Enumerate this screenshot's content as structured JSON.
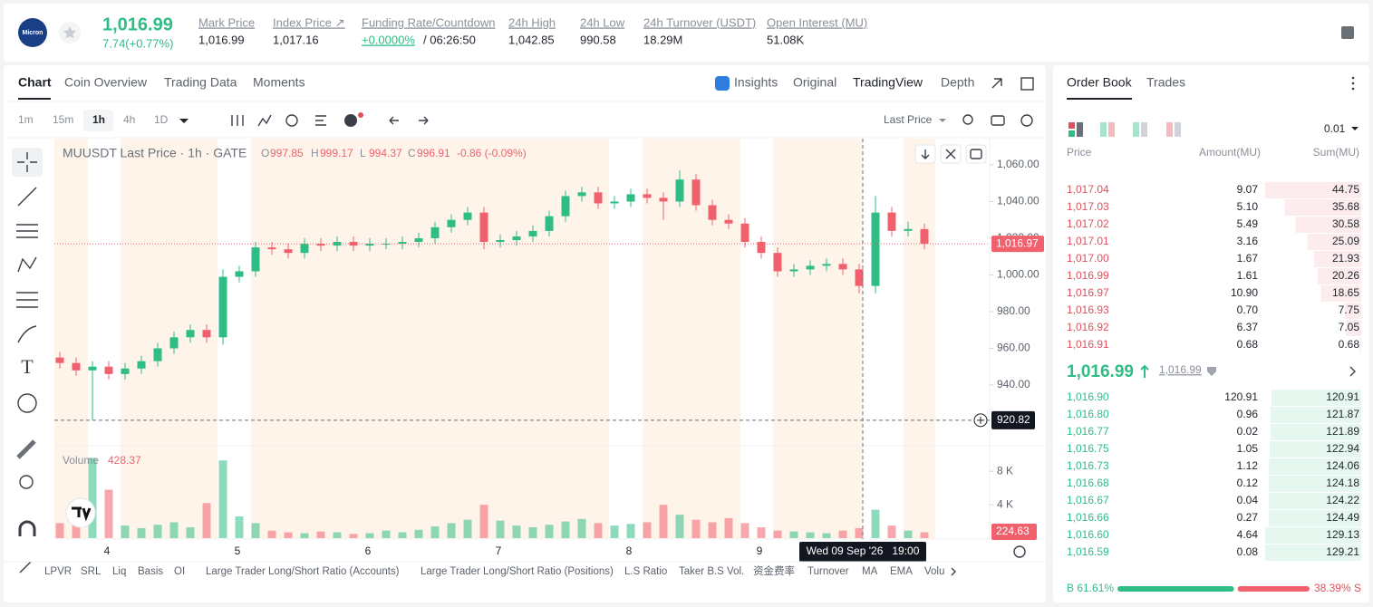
{
  "header": {
    "icon_text": "Micron",
    "last_price": "1,016.99",
    "change": "7.74(+0.77%)",
    "stats": [
      {
        "label": "Mark Price",
        "value": "1,016.99"
      },
      {
        "label": "Index Price ↗",
        "value": "1,017.16"
      },
      {
        "label": "Funding Rate/Countdown",
        "value": "+0.0000%",
        "countdown": "/ 06:26:50"
      },
      {
        "label": "24h High",
        "value": "1,042.85"
      },
      {
        "label": "24h Low",
        "value": "990.58"
      },
      {
        "label": "24h Turnover (USDT)",
        "value": "18.29M"
      },
      {
        "label": "Open Interest (MU)",
        "value": "51.08K"
      }
    ]
  },
  "tabs": [
    "Chart",
    "Coin Overview",
    "Trading Data",
    "Moments"
  ],
  "view_tabs": [
    "Insights",
    "Original",
    "TradingView",
    "Depth"
  ],
  "intervals": [
    "1m",
    "15m",
    "1h",
    "4h",
    "1D"
  ],
  "price_type": "Last Price",
  "chart_data": {
    "type": "candlestick",
    "title": "MUUSDT Last Price · 1h · GATE",
    "legend": [
      {
        "key": "O",
        "value": "997.85"
      },
      {
        "key": "H",
        "value": "999.17"
      },
      {
        "key": "L",
        "value": "994.37"
      },
      {
        "key": "C",
        "value": "996.91"
      }
    ],
    "legend_change": "-0.86 (-0.09%)",
    "x_labels": [
      "4",
      "5",
      "6",
      "7",
      "8",
      "9"
    ],
    "open": [
      955,
      952,
      948,
      950,
      946,
      949,
      953,
      960,
      966,
      970,
      966,
      999,
      1002,
      1015,
      1014,
      1012,
      1017,
      1016,
      1018,
      1016,
      1017,
      1017,
      1018,
      1020,
      1026,
      1030,
      1034,
      1018,
      1019,
      1021,
      1024,
      1032,
      1043,
      1045,
      1039,
      1040,
      1044,
      1042,
      1040,
      1052,
      1038,
      1030,
      1028,
      1018,
      1012,
      1002,
      1003,
      1005,
      1006,
      1003,
      994,
      1034,
      1024,
      1025
    ],
    "high": [
      958,
      955,
      953,
      953,
      952,
      956,
      963,
      969,
      973,
      973,
      1003,
      1005,
      1018,
      1018,
      1017,
      1020,
      1020,
      1021,
      1021,
      1020,
      1020,
      1021,
      1023,
      1029,
      1033,
      1037,
      1037,
      1022,
      1024,
      1027,
      1035,
      1046,
      1048,
      1048,
      1043,
      1047,
      1047,
      1045,
      1057,
      1055,
      1041,
      1033,
      1031,
      1021,
      1015,
      1006,
      1008,
      1009,
      1009,
      1006,
      1043,
      1037,
      1029,
      1028
    ],
    "low": [
      949,
      945,
      921,
      943,
      943,
      946,
      950,
      957,
      963,
      963,
      962,
      996,
      999,
      1011,
      1009,
      1009,
      1013,
      1013,
      1013,
      1013,
      1014,
      1014,
      1015,
      1017,
      1023,
      1027,
      1014,
      1015,
      1016,
      1018,
      1021,
      1029,
      1040,
      1036,
      1036,
      1037,
      1039,
      1030,
      1037,
      1035,
      1027,
      1025,
      1015,
      1009,
      999,
      999,
      1000,
      1002,
      1000,
      990,
      990,
      1021,
      1021,
      1014
    ],
    "close": [
      952,
      948,
      950,
      946,
      949,
      953,
      960,
      966,
      970,
      966,
      999,
      1002,
      1015,
      1014,
      1012,
      1017,
      1016,
      1018,
      1016,
      1017,
      1017,
      1018,
      1020,
      1026,
      1030,
      1034,
      1018,
      1019,
      1021,
      1024,
      1032,
      1043,
      1045,
      1039,
      1040,
      1044,
      1042,
      1040,
      1052,
      1038,
      1030,
      1028,
      1018,
      1012,
      1002,
      1003,
      1005,
      1006,
      1003,
      994,
      1034,
      1024,
      1025,
      1017
    ],
    "volume": [
      1800,
      2400,
      9600,
      5800,
      1500,
      1200,
      1600,
      1900,
      1300,
      4200,
      9300,
      2600,
      1800,
      900,
      700,
      600,
      800,
      700,
      500,
      600,
      900,
      700,
      1000,
      1400,
      1800,
      2200,
      4000,
      2100,
      1500,
      1300,
      1600,
      2000,
      2300,
      1800,
      1500,
      1700,
      1900,
      4000,
      2800,
      2200,
      1900,
      2400,
      1800,
      1300,
      900,
      800,
      700,
      600,
      900,
      1200,
      3400,
      1500,
      900,
      700
    ],
    "up_color": "#2ebd85",
    "down_color": "#f0616d",
    "ylim": [
      907.9,
      1074.3
    ],
    "yticks": [
      {
        "value": 940,
        "label": "940.00"
      },
      {
        "value": 960,
        "label": "960.00"
      },
      {
        "value": 980,
        "label": "980.00"
      },
      {
        "value": 1000,
        "label": "1,000.00"
      },
      {
        "value": 1020,
        "label": "1,020.00"
      },
      {
        "value": 1040,
        "label": "1,040.00"
      },
      {
        "value": 1060,
        "label": "1,060.00"
      }
    ],
    "volume_ylim": [
      0,
      10300
    ],
    "volume_yticks": [
      {
        "value": 4000,
        "label": "4 K"
      },
      {
        "value": 8000,
        "label": "8 K"
      }
    ],
    "volume_title": "Volume",
    "volume_legend_value": "428.37",
    "volume_last": "224.63",
    "last_price": {
      "value": 1016.97,
      "label": "1,016.97"
    },
    "crosshair": {
      "value": 920.82,
      "label": "920.82",
      "time": "Wed 09 Sep '26   19:00"
    },
    "grid": false
  },
  "indicators": [
    "LPVR",
    "SRL",
    "Liq",
    "Basis",
    "OI",
    "Large Trader Long/Short Ratio (Accounts)",
    "Large Trader Long/Short Ratio (Positions)",
    "L.S Ratio",
    "Taker B.S Vol.",
    "资金费率",
    "Turnover",
    "MA",
    "EMA",
    "Volu"
  ],
  "order_book": {
    "tabs": [
      "Order Book",
      "Trades"
    ],
    "precision": "0.01",
    "columns": [
      "Price",
      "Amount(MU)",
      "Sum(MU)"
    ],
    "asks": [
      [
        "1,017.04",
        "9.07",
        "44.75"
      ],
      [
        "1,017.03",
        "5.10",
        "35.68"
      ],
      [
        "1,017.02",
        "5.49",
        "30.58"
      ],
      [
        "1,017.01",
        "3.16",
        "25.09"
      ],
      [
        "1,017.00",
        "1.67",
        "21.93"
      ],
      [
        "1,016.99",
        "1.61",
        "20.26"
      ],
      [
        "1,016.97",
        "10.90",
        "18.65"
      ],
      [
        "1,016.93",
        "0.70",
        "7.75"
      ],
      [
        "1,016.92",
        "6.37",
        "7.05"
      ],
      [
        "1,016.91",
        "0.68",
        "0.68"
      ]
    ],
    "mid_price": "1,016.99",
    "mark_price": "1,016.99",
    "bids": [
      [
        "1,016.90",
        "120.91",
        "120.91"
      ],
      [
        "1,016.80",
        "0.96",
        "121.87"
      ],
      [
        "1,016.77",
        "0.02",
        "121.89"
      ],
      [
        "1,016.75",
        "1.05",
        "122.94"
      ],
      [
        "1,016.73",
        "1.12",
        "124.06"
      ],
      [
        "1,016.68",
        "0.12",
        "124.18"
      ],
      [
        "1,016.67",
        "0.04",
        "124.22"
      ],
      [
        "1,016.66",
        "0.27",
        "124.49"
      ],
      [
        "1,016.60",
        "4.64",
        "129.13"
      ],
      [
        "1,016.59",
        "0.08",
        "129.21"
      ]
    ],
    "buy_ratio": {
      "value": 61.61,
      "label": "B 61.61%"
    },
    "sell_ratio": {
      "value": 38.39,
      "label": "38.39% S"
    }
  }
}
